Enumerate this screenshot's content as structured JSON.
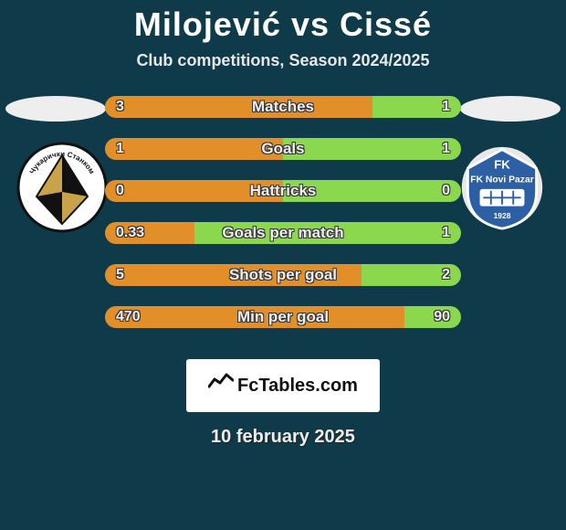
{
  "title": "Milojević vs Cissé",
  "subtitle": "Club competitions, Season 2024/2025",
  "date": "10 february 2025",
  "footer_brand": "FcTables.com",
  "colors": {
    "background": "#0e3a4a",
    "left_bar": "#e28f2a",
    "right_bar": "#8bd84f",
    "ellipse": "#eeeeee",
    "text": "#ffffff"
  },
  "stats": [
    {
      "label": "Matches",
      "left_val": "3",
      "right_val": "1",
      "left_pct": 75,
      "right_pct": 25
    },
    {
      "label": "Goals",
      "left_val": "1",
      "right_val": "1",
      "left_pct": 50,
      "right_pct": 50
    },
    {
      "label": "Hattricks",
      "left_val": "0",
      "right_val": "0",
      "left_pct": 50,
      "right_pct": 50
    },
    {
      "label": "Goals per match",
      "left_val": "0.33",
      "right_val": "1",
      "left_pct": 25,
      "right_pct": 75
    },
    {
      "label": "Shots per goal",
      "left_val": "5",
      "right_val": "2",
      "left_pct": 72,
      "right_pct": 28
    },
    {
      "label": "Min per goal",
      "left_val": "470",
      "right_val": "90",
      "left_pct": 84,
      "right_pct": 16
    }
  ],
  "clubs": {
    "left": {
      "name": "Чукарички Станком",
      "badge_name": "cukaricki-badge"
    },
    "right": {
      "name": "FK Novi Pazar",
      "badge_name": "novi-pazar-badge",
      "year": "1928"
    }
  }
}
